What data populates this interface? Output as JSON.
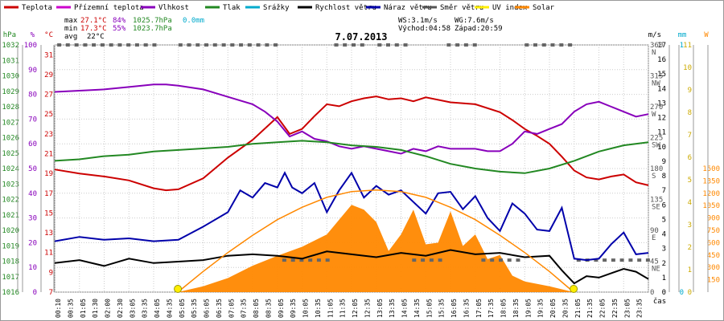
{
  "legend": [
    {
      "label": "Teplota",
      "color": "#cc0000"
    },
    {
      "label": "Přízemní teplota",
      "color": "#cc00cc"
    },
    {
      "label": "Vlhkost",
      "color": "#8800bb"
    },
    {
      "label": "Tlak",
      "color": "#228822"
    },
    {
      "label": "Srážky",
      "color": "#00aacc"
    },
    {
      "label": "Rychlost větru",
      "color": "#000000"
    },
    {
      "label": "Náraz větru",
      "color": "#0000aa"
    },
    {
      "label": "Směr větru",
      "color": "#555555"
    },
    {
      "label": "UV index",
      "color": "#ffee00"
    },
    {
      "label": "Solar",
      "color": "#ff8800"
    }
  ],
  "stats": {
    "max_label": "max",
    "max_temp": "27.1°C",
    "max_hum": "84%",
    "max_press": "1025.7hPa",
    "rain": "0.0mm",
    "min_label": "min",
    "min_temp": "17.3°C",
    "min_hum": "55%",
    "min_press": "1023.7hPa",
    "avg_label": "avg",
    "avg_temp": "22°C"
  },
  "wind_info": {
    "ws": "WS:3.1m/s",
    "wg": "WG:7.6m/s",
    "sunrise": "Východ:04:58",
    "sunset": "Západ:20:59"
  },
  "title": "7.07.2013",
  "x_axis_unit": "čas",
  "chart_data": {
    "type": "line",
    "title": "7.07.2013",
    "x_ticks": [
      "00:10",
      "00:35",
      "01:05",
      "01:30",
      "02:00",
      "02:30",
      "03:05",
      "03:35",
      "04:05",
      "04:35",
      "05:05",
      "05:35",
      "06:05",
      "06:35",
      "07:05",
      "07:35",
      "08:05",
      "08:35",
      "09:05",
      "09:35",
      "10:05",
      "10:35",
      "11:05",
      "11:35",
      "12:05",
      "12:35",
      "13:05",
      "13:35",
      "14:05",
      "14:35",
      "15:05",
      "15:35",
      "16:05",
      "16:35",
      "17:05",
      "17:35",
      "18:05",
      "18:35",
      "19:05",
      "19:35",
      "20:05",
      "20:35",
      "21:05",
      "21:35",
      "22:05",
      "22:35",
      "23:05",
      "23:35"
    ],
    "axes": {
      "hPa": {
        "label": "hPa",
        "ticks": [
          1016,
          1017,
          1018,
          1019,
          1020,
          1021,
          1022,
          1023,
          1024,
          1025,
          1026,
          1027,
          1028,
          1029,
          1030,
          1031,
          1032
        ],
        "color": "#228822"
      },
      "percent": {
        "label": "%",
        "ticks": [
          0,
          10,
          20,
          30,
          40,
          50,
          60,
          70,
          80,
          90,
          100
        ],
        "color": "#8800bb"
      },
      "celsius": {
        "label": "°C",
        "ticks": [
          7,
          9,
          11,
          13,
          15,
          17,
          19,
          21,
          23,
          25,
          27,
          29,
          31
        ],
        "color": "#cc0000"
      },
      "direction": {
        "ticks": [
          [
            "360",
            "N"
          ],
          [
            "315",
            "NW"
          ],
          [
            "270",
            "W"
          ],
          [
            "225",
            "SW"
          ],
          [
            "180",
            "S"
          ],
          [
            "135",
            "SE"
          ],
          [
            "90",
            "E"
          ],
          [
            "45",
            "NE"
          ],
          [
            "0",
            ""
          ]
        ],
        "color": "#555555"
      },
      "ms": {
        "label": "m/s",
        "ticks": [
          0,
          1,
          2,
          3,
          4,
          5,
          6,
          7,
          8,
          9,
          10,
          11,
          12,
          13,
          14,
          15,
          16,
          17
        ],
        "color": "#000000"
      },
      "mm": {
        "label": "mm",
        "ticks": [
          0,
          1
        ],
        "color": "#00aacc"
      },
      "uv": {
        "ticks": [
          0,
          1,
          2,
          3,
          4,
          5,
          6,
          7,
          8,
          9,
          10,
          11
        ],
        "color": "#ccaa00"
      },
      "W": {
        "label": "W",
        "ticks": [
          150,
          300,
          450,
          600,
          750,
          900,
          1050,
          1200,
          1350,
          1500
        ],
        "color": "#ff8800"
      }
    },
    "series": [
      {
        "name": "Teplota",
        "unit": "°C",
        "color": "#cc0000",
        "x": [
          0,
          1,
          2,
          3,
          4,
          4.5,
          5,
          6,
          7,
          8,
          9,
          9.5,
          10,
          10.5,
          11,
          11.5,
          12,
          12.5,
          13,
          13.5,
          14,
          14.5,
          15,
          16,
          17,
          18,
          18.5,
          19,
          19.5,
          20,
          20.5,
          21,
          21.5,
          22,
          22.5,
          23,
          23.5,
          24
        ],
        "y": [
          19.4,
          19,
          18.7,
          18.3,
          17.5,
          17.3,
          17.4,
          18.5,
          20.6,
          22.4,
          24.7,
          23,
          23.5,
          24.8,
          26,
          25.8,
          26.3,
          26.6,
          26.8,
          26.5,
          26.6,
          26.3,
          26.7,
          26.2,
          26,
          25.2,
          24.4,
          23.5,
          22.8,
          22,
          20.7,
          19.3,
          18.6,
          18.4,
          18.7,
          18.9,
          18.1,
          17.8
        ]
      },
      {
        "name": "Vlhkost",
        "unit": "%",
        "color": "#8800bb",
        "x": [
          0,
          1,
          2,
          3,
          4,
          4.5,
          5,
          6,
          7,
          8,
          8.5,
          9,
          9.5,
          10,
          10.5,
          11,
          11.5,
          12,
          12.5,
          13,
          13.5,
          14,
          14.5,
          15,
          15.5,
          16,
          17,
          17.5,
          18,
          18.5,
          19,
          19.5,
          20,
          20.5,
          21,
          21.5,
          22,
          22.5,
          23,
          23.5,
          24
        ],
        "y": [
          81,
          81.5,
          82,
          83,
          84,
          84,
          83.5,
          82,
          79,
          76,
          73,
          69,
          63,
          65,
          62,
          61,
          59,
          58,
          59,
          58,
          57,
          56,
          58,
          57,
          59,
          58,
          58,
          57,
          57,
          60,
          65,
          64,
          66,
          68,
          73,
          76,
          77,
          75,
          73,
          71,
          72
        ]
      },
      {
        "name": "Tlak",
        "unit": "hPa",
        "color": "#228822",
        "x": [
          0,
          1,
          2,
          3,
          4,
          5,
          6,
          7,
          8,
          9,
          10,
          11,
          12,
          13,
          14,
          15,
          16,
          17,
          18,
          19,
          20,
          21,
          22,
          23,
          24
        ],
        "y": [
          1024.5,
          1024.6,
          1024.8,
          1024.9,
          1025.1,
          1025.2,
          1025.3,
          1025.4,
          1025.6,
          1025.7,
          1025.8,
          1025.7,
          1025.5,
          1025.4,
          1025.2,
          1024.8,
          1024.3,
          1024,
          1023.8,
          1023.7,
          1024,
          1024.5,
          1025.1,
          1025.5,
          1025.7
        ]
      },
      {
        "name": "Náraz větru",
        "unit": "m/s",
        "color": "#0000aa",
        "x": [
          0,
          1,
          2,
          3,
          4,
          5,
          6,
          7,
          7.5,
          8,
          8.5,
          9,
          9.3,
          9.6,
          10,
          10.5,
          11,
          11.5,
          12,
          12.5,
          13,
          13.5,
          14,
          14.5,
          15,
          15.5,
          16,
          16.5,
          17,
          17.5,
          18,
          18.5,
          19,
          19.5,
          20,
          20.5,
          21,
          21.5,
          22,
          22.5,
          23,
          23.5,
          24
        ],
        "y": [
          3.5,
          3.8,
          3.6,
          3.7,
          3.5,
          3.6,
          4.5,
          5.5,
          7,
          6.5,
          7.5,
          7.2,
          8.2,
          7.2,
          6.8,
          7.5,
          5.5,
          7,
          8.2,
          6.5,
          7.3,
          6.7,
          7,
          6.2,
          5.4,
          6.8,
          6.9,
          5.7,
          6.6,
          5.1,
          4.2,
          6.1,
          5.4,
          4.3,
          4.2,
          5.8,
          2.3,
          2.2,
          2.3,
          3.3,
          4.1,
          2.6,
          2.7
        ]
      },
      {
        "name": "Rychlost větru",
        "unit": "m/s",
        "color": "#000000",
        "x": [
          0,
          1,
          2,
          3,
          4,
          5,
          6,
          7,
          8,
          9,
          10,
          11,
          12,
          13,
          14,
          15,
          16,
          17,
          18,
          19,
          20,
          20.5,
          21,
          21.5,
          22,
          22.5,
          23,
          23.5,
          24
        ],
        "y": [
          2,
          2.2,
          1.8,
          2.3,
          2,
          2.1,
          2.2,
          2.5,
          2.6,
          2.5,
          2.3,
          2.8,
          2.6,
          2.4,
          2.7,
          2.5,
          2.9,
          2.6,
          2.7,
          2.4,
          2.5,
          1.5,
          0.6,
          1.1,
          1,
          1.3,
          1.6,
          1.4,
          0.9
        ]
      },
      {
        "name": "Solar",
        "unit": "W",
        "color": "#ff8800",
        "x": [
          4.98,
          6,
          7,
          8,
          9,
          10,
          11,
          12,
          12.5,
          13,
          13.5,
          14,
          14.5,
          15,
          15.5,
          16,
          16.5,
          17,
          17.5,
          18,
          18.5,
          19,
          20,
          20.98
        ],
        "y": [
          0,
          70,
          170,
          320,
          440,
          550,
          700,
          1060,
          1000,
          850,
          500,
          700,
          1000,
          580,
          600,
          980,
          560,
          700,
          400,
          450,
          200,
          130,
          70,
          0
        ]
      },
      {
        "name": "Solar theoretical",
        "unit": "W",
        "color": "#ff8800",
        "x": [
          4.98,
          6,
          7,
          8,
          9,
          10,
          11,
          12,
          13,
          14,
          15,
          16,
          17,
          18,
          19,
          20,
          20.98
        ],
        "y": [
          0,
          250,
          480,
          690,
          880,
          1030,
          1150,
          1220,
          1240,
          1220,
          1150,
          1030,
          880,
          690,
          480,
          250,
          0
        ]
      }
    ],
    "sunrise_hour": 4.98,
    "sunset_hour": 20.98,
    "grid": true
  }
}
